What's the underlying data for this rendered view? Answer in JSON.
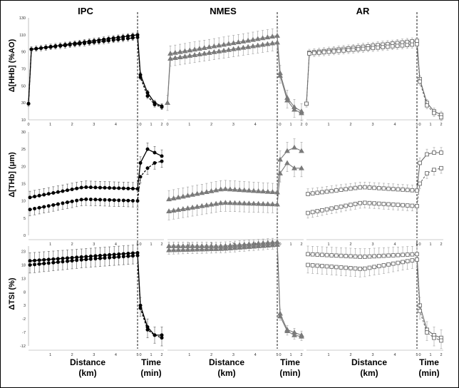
{
  "chart_data": [
    {
      "type": "line",
      "panel": "HHb",
      "ylabel": "Δ[HHb] (%AO)",
      "yticks": [
        "130",
        "110",
        "90",
        "70",
        "50",
        "30",
        "10"
      ],
      "ylim": [
        10,
        130
      ],
      "distance_ticks": [
        "0",
        "1",
        "2",
        "3",
        "4",
        "5"
      ],
      "time_ticks": [
        "0",
        "1",
        "2"
      ],
      "groups": [
        {
          "title": "IPC",
          "series": [
            {
              "marker": "filled-circle",
              "start": 29,
              "plateau": [
                93,
                110
              ],
              "recovery": [
                110,
                63,
                42,
                30,
                26
              ],
              "error": 3
            },
            {
              "marker": "filled-circle",
              "start": 29,
              "plateau": [
                93,
                107
              ],
              "recovery": [
                107,
                60,
                38,
                28,
                25
              ],
              "error": 3
            }
          ]
        },
        {
          "title": "NMES",
          "series": [
            {
              "marker": "filled-triangle",
              "start": 30,
              "plateau": [
                88,
                109
              ],
              "recovery": [
                109,
                65,
                36,
                25,
                20
              ],
              "error": 9
            },
            {
              "marker": "filled-triangle",
              "start": 30,
              "plateau": [
                82,
                101
              ],
              "recovery": [
                101,
                62,
                33,
                22,
                18
              ],
              "error": 9
            }
          ]
        },
        {
          "title": "AR",
          "series": [
            {
              "marker": "open-square",
              "start": 29,
              "plateau": [
                89,
                103
              ],
              "recovery": [
                103,
                58,
                30,
                20,
                16
              ],
              "error": 4
            },
            {
              "marker": "open-square",
              "start": 29,
              "plateau": [
                88,
                99
              ],
              "recovery": [
                99,
                55,
                27,
                18,
                13
              ],
              "error": 4
            }
          ]
        }
      ]
    },
    {
      "type": "line",
      "panel": "THb",
      "ylabel": "Δ[THb] (μm)",
      "yticks": [
        "30",
        "25",
        "20",
        "15",
        "10",
        "5",
        "0"
      ],
      "ylim": [
        0,
        30
      ],
      "distance_ticks": [
        "1",
        "2",
        "3",
        "4",
        "5"
      ],
      "time_ticks": [
        "0",
        "1",
        "2"
      ],
      "groups": [
        {
          "title": "IPC",
          "series": [
            {
              "marker": "filled-circle",
              "plateau": [
                11,
                14,
                13.5
              ],
              "recovery": [
                13.5,
                21,
                25,
                24,
                23
              ],
              "error": 1.8
            },
            {
              "marker": "filled-circle",
              "plateau": [
                7.5,
                10.5,
                10
              ],
              "recovery": [
                10,
                17,
                19.5,
                21,
                21.5
              ],
              "error": 1.8
            }
          ]
        },
        {
          "title": "NMES",
          "series": [
            {
              "marker": "filled-triangle",
              "plateau": [
                10.5,
                13.5,
                12.5
              ],
              "recovery": [
                12.5,
                22,
                24.5,
                25.5,
                24.5
              ],
              "error": 2.5
            },
            {
              "marker": "filled-triangle",
              "plateau": [
                7,
                9.5,
                9
              ],
              "recovery": [
                9,
                18,
                21,
                19.5,
                19.5
              ],
              "error": 2.5
            }
          ]
        },
        {
          "title": "AR",
          "series": [
            {
              "marker": "open-square",
              "plateau": [
                12,
                14,
                13
              ],
              "recovery": [
                13,
                21,
                23.5,
                24,
                24
              ],
              "error": 1.5
            },
            {
              "marker": "open-square",
              "plateau": [
                6.5,
                9.5,
                8.5
              ],
              "recovery": [
                8.5,
                15,
                18,
                19,
                19.5
              ],
              "error": 1.5
            }
          ]
        }
      ]
    },
    {
      "type": "line",
      "panel": "TSI",
      "ylabel": "ΔTSI (%)",
      "yticks": [
        "23",
        "18",
        "13",
        "8",
        "3",
        "-2",
        "-7",
        "-12"
      ],
      "ylim": [
        -12,
        25
      ],
      "distance_ticks": [
        "1",
        "2",
        "3",
        "4",
        "5"
      ],
      "time_ticks": [
        "0",
        "1",
        "2"
      ],
      "groups": [
        {
          "title": "IPC",
          "series": [
            {
              "marker": "filled-circle",
              "plateau": [
                19.5,
                21,
                22.5
              ],
              "recovery": [
                22.5,
                3,
                -5,
                -8,
                -8
              ],
              "error": 3
            },
            {
              "marker": "filled-circle",
              "plateau": [
                18,
                20,
                21.5
              ],
              "recovery": [
                21.5,
                2,
                -6,
                -8,
                -9
              ],
              "error": 3
            }
          ]
        },
        {
          "title": "NMES",
          "series": [
            {
              "marker": "filled-triangle",
              "plateau": [
                25,
                25,
                26.5
              ],
              "recovery": [
                26.5,
                0,
                -6,
                -7,
                -8
              ],
              "error": 1.5
            },
            {
              "marker": "filled-triangle",
              "plateau": [
                23.5,
                24,
                25.5
              ],
              "recovery": [
                25.5,
                -1,
                -6.5,
                -8,
                -8.5
              ],
              "error": 1.5
            }
          ]
        },
        {
          "title": "AR",
          "series": [
            {
              "marker": "open-square",
              "plateau": [
                22,
                21,
                22
              ],
              "recovery": [
                22,
                3,
                -6,
                -8,
                -9
              ],
              "error": 3
            },
            {
              "marker": "open-square",
              "plateau": [
                18,
                16.5,
                20
              ],
              "recovery": [
                20,
                1,
                -7,
                -9,
                -10
              ],
              "error": 3
            }
          ]
        }
      ]
    }
  ],
  "labels": {
    "group_titles": [
      "IPC",
      "NMES",
      "AR"
    ],
    "distance": "Distance",
    "distance_unit": "(km)",
    "time": "Time",
    "time_unit": "(min)"
  }
}
